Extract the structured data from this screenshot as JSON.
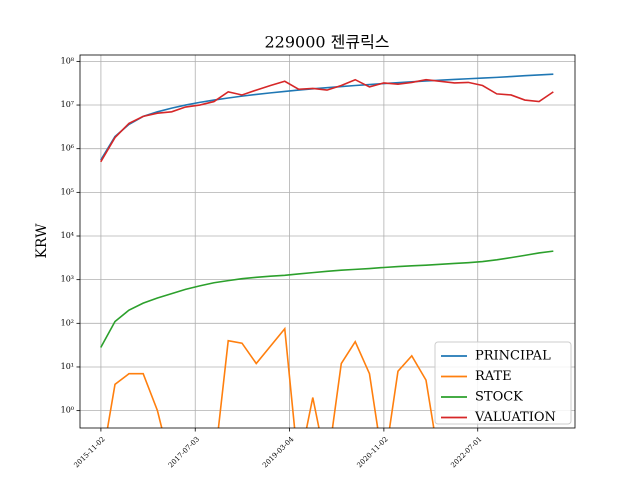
{
  "chart_data": {
    "type": "line",
    "title": "229000 젠큐릭스",
    "ylabel": "KRW",
    "x": [
      "2015-11-01",
      "2016-02-01",
      "2016-05-01",
      "2016-08-01",
      "2016-11-01",
      "2017-02-01",
      "2017-05-01",
      "2017-08-01",
      "2017-11-01",
      "2018-02-01",
      "2018-05-01",
      "2018-08-01",
      "2018-11-01",
      "2019-02-01",
      "2019-05-01",
      "2019-08-01",
      "2019-11-01",
      "2020-02-01",
      "2020-05-01",
      "2020-08-01",
      "2020-11-01",
      "2021-02-01",
      "2021-05-01",
      "2021-08-01",
      "2021-11-01",
      "2022-02-01",
      "2022-05-01",
      "2022-08-01",
      "2022-11-01",
      "2023-02-01",
      "2023-05-01",
      "2023-08-01",
      "2023-11-01"
    ],
    "series": [
      {
        "name": "PRINCIPAL",
        "color": "#1f77b4",
        "values": [
          550000,
          1900000,
          3600000,
          5500000,
          7000000,
          8500000,
          10000000,
          11500000,
          13000000,
          14500000,
          16000000,
          17500000,
          19000000,
          20500000,
          22000000,
          23500000,
          25000000,
          26500000,
          28000000,
          29500000,
          31000000,
          32500000,
          34000000,
          35500000,
          37000000,
          38500000,
          40000000,
          41500000,
          43000000,
          45000000,
          47000000,
          49000000,
          51000000
        ]
      },
      {
        "name": "RATE",
        "color": "#ff7f0e",
        "values": [
          0,
          4,
          7,
          7,
          1,
          0,
          0,
          0,
          0,
          40,
          35,
          12,
          30,
          75,
          0,
          2,
          0,
          12,
          38,
          7,
          0,
          8,
          18,
          5,
          0,
          0,
          0,
          0,
          0,
          0,
          0,
          0,
          0
        ]
      },
      {
        "name": "STOCK",
        "color": "#2ca02c",
        "values": [
          28,
          110,
          200,
          290,
          380,
          480,
          600,
          720,
          850,
          950,
          1050,
          1130,
          1200,
          1260,
          1350,
          1450,
          1550,
          1650,
          1720,
          1800,
          1900,
          2000,
          2080,
          2150,
          2250,
          2350,
          2450,
          2600,
          2850,
          3200,
          3600,
          4100,
          4500
        ]
      },
      {
        "name": "VALUATION",
        "color": "#d62728",
        "values": [
          500000,
          1800000,
          3800000,
          5500000,
          6500000,
          7000000,
          9000000,
          10000000,
          12000000,
          20000000,
          17000000,
          22000000,
          28000000,
          35000000,
          23000000,
          24000000,
          22000000,
          28000000,
          38000000,
          26000000,
          32000000,
          30000000,
          33000000,
          38000000,
          35000000,
          32000000,
          33000000,
          28000000,
          18000000,
          17000000,
          13000000,
          12000000,
          20000000
        ]
      }
    ],
    "xlim": [
      "2015-06-20",
      "2024-03-20"
    ],
    "xticks": [
      "2015-11-02",
      "2017-07-03",
      "2019-03-04",
      "2020-11-02",
      "2022-07-01"
    ],
    "ylim": [
      0.4,
      140000000
    ],
    "ylog": true,
    "yticks": [
      {
        "value": 1,
        "label": "10⁰"
      },
      {
        "value": 10,
        "label": "10¹"
      },
      {
        "value": 100,
        "label": "10²"
      },
      {
        "value": 1000,
        "label": "10³"
      },
      {
        "value": 10000,
        "label": "10⁴"
      },
      {
        "value": 100000,
        "label": "10⁵"
      },
      {
        "value": 1000000,
        "label": "10⁶"
      },
      {
        "value": 10000000,
        "label": "10⁷"
      },
      {
        "value": 100000000,
        "label": "10⁸"
      }
    ],
    "grid": true,
    "legend": "lower right"
  }
}
